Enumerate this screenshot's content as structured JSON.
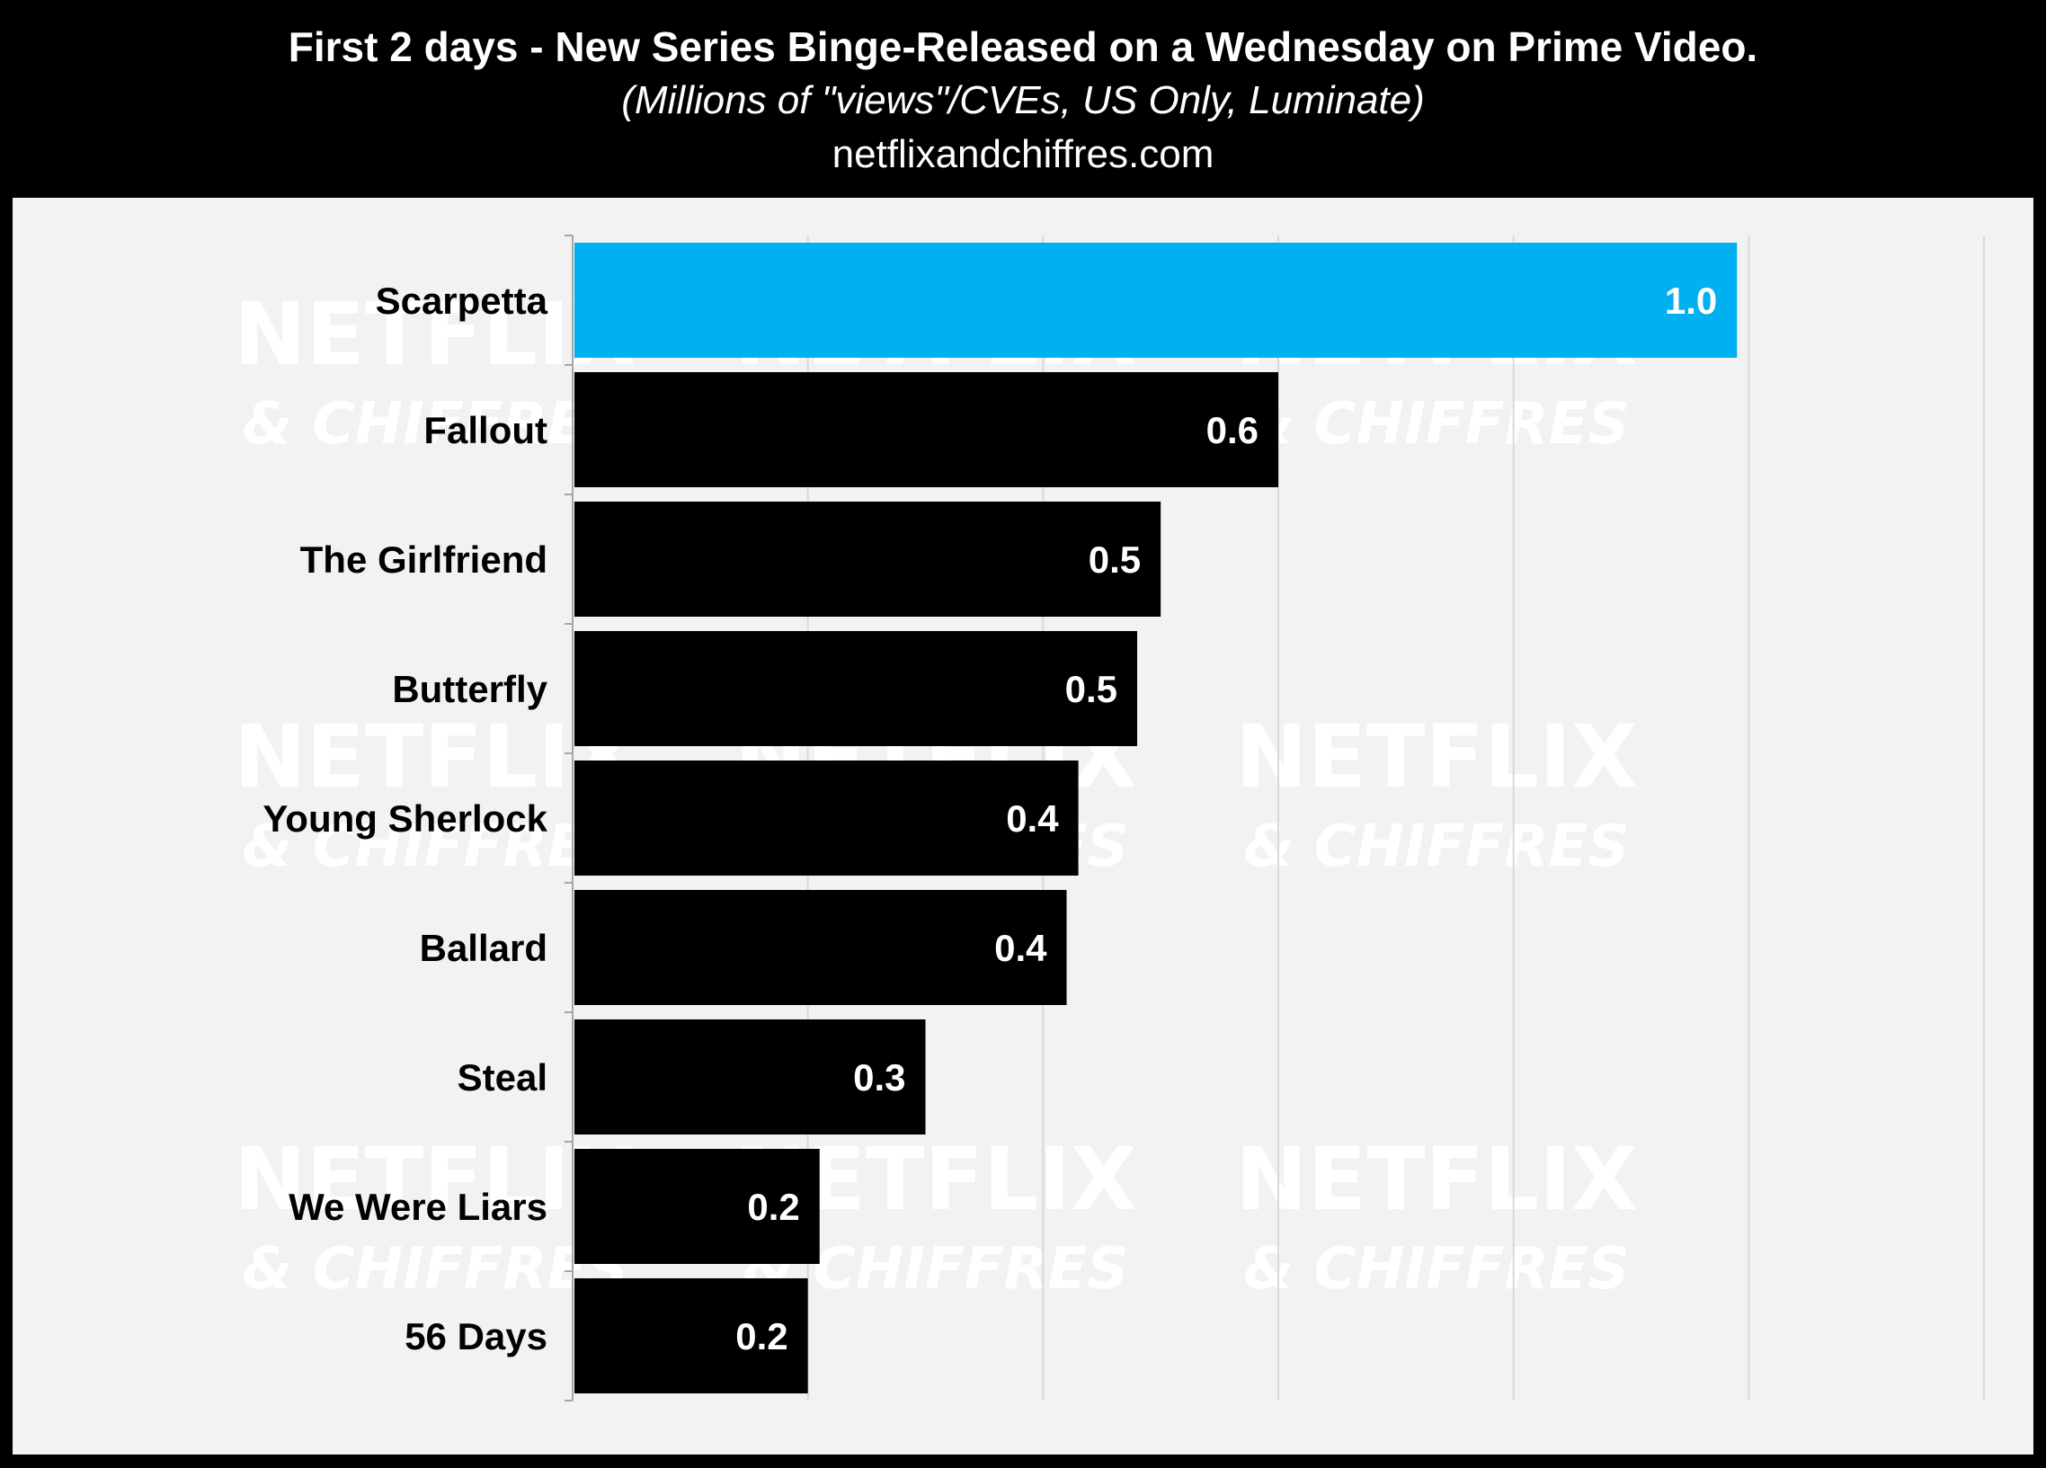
{
  "header": {
    "title": "First 2 days - New Series Binge-Released on a Wednesday on Prime Video.",
    "subtitle": "(Millions of \"views\"/CVEs, US Only, Luminate)",
    "source": "netflixandchiffres.com"
  },
  "watermark": {
    "line1": "NETFLIX",
    "line2": "& CHIFFRES"
  },
  "colors": {
    "background": "#000000",
    "panel": "#f2f2f2",
    "highlight_bar": "#00b0f0",
    "bar": "#000000",
    "gridline": "#d9d9d9"
  },
  "chart_data": {
    "type": "bar",
    "orientation": "horizontal",
    "categories": [
      "Scarpetta",
      "Fallout",
      "The Girlfriend",
      "Butterfly",
      "Young Sherlock",
      "Ballard",
      "Steal",
      "We Were Liars",
      "56 Days"
    ],
    "values": [
      0.99,
      0.6,
      0.5,
      0.48,
      0.43,
      0.42,
      0.3,
      0.21,
      0.2
    ],
    "labels": [
      "1.0",
      "0.6",
      "0.5",
      "0.5",
      "0.4",
      "0.4",
      "0.3",
      "0.2",
      "0.2"
    ],
    "highlight_index": 0,
    "xlim": [
      0,
      1.2
    ],
    "grid": true,
    "legend": "none"
  }
}
